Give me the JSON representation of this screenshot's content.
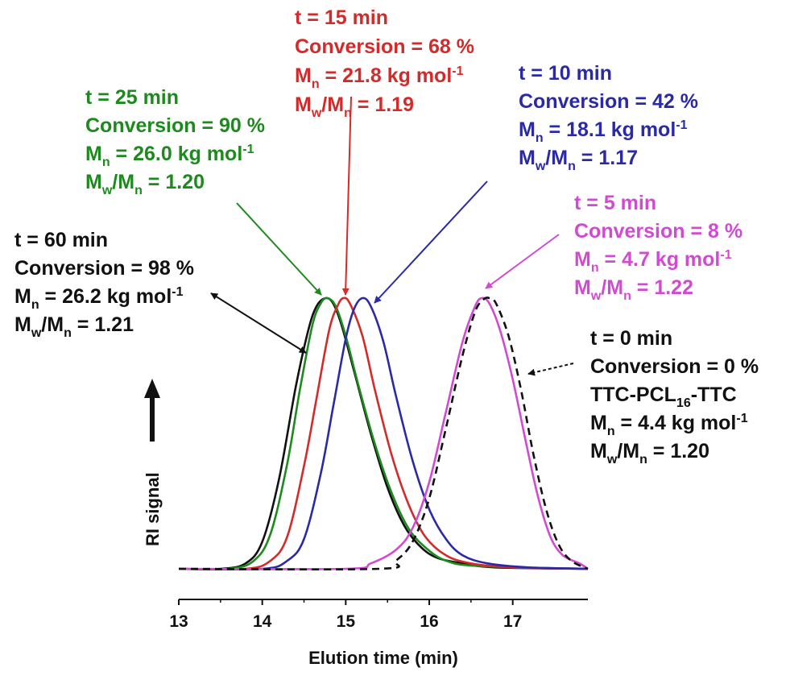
{
  "chart_data": {
    "type": "line",
    "xlabel": "Elution time (min)",
    "ylabel": "RI signal",
    "xlim": [
      13,
      17.9
    ],
    "ylim": [
      0,
      1
    ],
    "xticks": [
      13,
      14,
      15,
      16,
      17
    ],
    "grid": false,
    "series": [
      {
        "key": "t60",
        "color": "#111111",
        "dashed": false,
        "peak_x": 14.76,
        "annotation": [
          "t = 60 min",
          "Conversion = 98 %",
          "M_n = 26.2 kg mol^-1",
          "M_w/M_n = 1.21"
        ],
        "points": [
          [
            13.0,
            0.0
          ],
          [
            13.5,
            0.0
          ],
          [
            13.8,
            0.02
          ],
          [
            14.0,
            0.1
          ],
          [
            14.2,
            0.33
          ],
          [
            14.4,
            0.67
          ],
          [
            14.55,
            0.88
          ],
          [
            14.65,
            0.97
          ],
          [
            14.76,
            1.0
          ],
          [
            14.85,
            0.98
          ],
          [
            14.95,
            0.9
          ],
          [
            15.1,
            0.73
          ],
          [
            15.3,
            0.5
          ],
          [
            15.5,
            0.3
          ],
          [
            15.7,
            0.16
          ],
          [
            15.9,
            0.08
          ],
          [
            16.1,
            0.04
          ],
          [
            16.4,
            0.02
          ],
          [
            16.8,
            0.005
          ],
          [
            17.9,
            0.0
          ]
        ]
      },
      {
        "key": "t25",
        "color": "#1d8a1d",
        "dashed": false,
        "peak_x": 14.78,
        "annotation": [
          "t = 25 min",
          "Conversion = 90 %",
          "M_n = 26.0 kg mol^-1",
          "M_w/M_n = 1.20"
        ],
        "points": [
          [
            13.0,
            0.0
          ],
          [
            13.6,
            0.0
          ],
          [
            13.9,
            0.03
          ],
          [
            14.1,
            0.13
          ],
          [
            14.3,
            0.39
          ],
          [
            14.45,
            0.66
          ],
          [
            14.6,
            0.9
          ],
          [
            14.7,
            0.98
          ],
          [
            14.78,
            1.0
          ],
          [
            14.88,
            0.97
          ],
          [
            15.0,
            0.86
          ],
          [
            15.15,
            0.68
          ],
          [
            15.35,
            0.46
          ],
          [
            15.55,
            0.28
          ],
          [
            15.75,
            0.15
          ],
          [
            15.95,
            0.08
          ],
          [
            16.2,
            0.03
          ],
          [
            16.6,
            0.01
          ],
          [
            17.9,
            0.0
          ]
        ]
      },
      {
        "key": "t15",
        "color": "#d42a2a",
        "dashed": false,
        "peak_x": 14.97,
        "annotation": [
          "t = 15 min",
          "Conversion = 68 %",
          "M_n = 21.8 kg mol^-1",
          "M_w/M_n = 1.19"
        ],
        "points": [
          [
            13.0,
            0.0
          ],
          [
            13.8,
            0.0
          ],
          [
            14.1,
            0.03
          ],
          [
            14.3,
            0.12
          ],
          [
            14.5,
            0.38
          ],
          [
            14.65,
            0.63
          ],
          [
            14.8,
            0.88
          ],
          [
            14.9,
            0.97
          ],
          [
            14.97,
            1.0
          ],
          [
            15.05,
            0.98
          ],
          [
            15.2,
            0.86
          ],
          [
            15.35,
            0.66
          ],
          [
            15.55,
            0.42
          ],
          [
            15.75,
            0.24
          ],
          [
            15.95,
            0.12
          ],
          [
            16.2,
            0.05
          ],
          [
            16.5,
            0.02
          ],
          [
            17.0,
            0.005
          ],
          [
            17.9,
            0.0
          ]
        ]
      },
      {
        "key": "t10",
        "color": "#2a2aa8",
        "dashed": false,
        "peak_x": 15.2,
        "annotation": [
          "t = 10 min",
          "Conversion = 42 %",
          "M_n = 18.1 kg mol^-1",
          "M_w/M_n = 1.17"
        ],
        "points": [
          [
            13.0,
            0.0
          ],
          [
            14.0,
            0.0
          ],
          [
            14.3,
            0.03
          ],
          [
            14.5,
            0.11
          ],
          [
            14.7,
            0.35
          ],
          [
            14.85,
            0.6
          ],
          [
            15.0,
            0.85
          ],
          [
            15.1,
            0.96
          ],
          [
            15.2,
            1.0
          ],
          [
            15.3,
            0.97
          ],
          [
            15.45,
            0.84
          ],
          [
            15.6,
            0.64
          ],
          [
            15.8,
            0.4
          ],
          [
            16.0,
            0.22
          ],
          [
            16.2,
            0.11
          ],
          [
            16.4,
            0.05
          ],
          [
            16.7,
            0.02
          ],
          [
            17.2,
            0.005
          ],
          [
            17.9,
            0.0
          ]
        ]
      },
      {
        "key": "t5",
        "color": "#d24ad2",
        "dashed": false,
        "peak_x": 16.63,
        "annotation": [
          "t = 5 min",
          "Conversion = 8 %",
          "M_n = 4.7 kg mol^-1",
          "M_w/M_n = 1.22"
        ],
        "points": [
          [
            13.0,
            0.0
          ],
          [
            15.0,
            0.0
          ],
          [
            15.3,
            0.02
          ],
          [
            15.6,
            0.07
          ],
          [
            15.8,
            0.15
          ],
          [
            16.0,
            0.32
          ],
          [
            16.2,
            0.58
          ],
          [
            16.4,
            0.84
          ],
          [
            16.55,
            0.97
          ],
          [
            16.63,
            1.0
          ],
          [
            16.72,
            0.98
          ],
          [
            16.85,
            0.88
          ],
          [
            17.0,
            0.7
          ],
          [
            17.15,
            0.48
          ],
          [
            17.3,
            0.27
          ],
          [
            17.45,
            0.12
          ],
          [
            17.6,
            0.05
          ],
          [
            17.8,
            0.02
          ],
          [
            17.9,
            0.0
          ]
        ]
      },
      {
        "key": "t0",
        "color": "#111111",
        "dashed": true,
        "peak_x": 16.72,
        "annotation": [
          "t = 0 min",
          "Conversion = 0 %",
          "TTC-PCL_16-TTC",
          "M_n = 4.4 kg mol^-1",
          "M_w/M_n = 1.20"
        ],
        "points": [
          [
            13.0,
            0.0
          ],
          [
            15.4,
            0.0
          ],
          [
            15.6,
            0.03
          ],
          [
            15.8,
            0.1
          ],
          [
            16.0,
            0.26
          ],
          [
            16.2,
            0.52
          ],
          [
            16.4,
            0.79
          ],
          [
            16.55,
            0.95
          ],
          [
            16.65,
            0.995
          ],
          [
            16.72,
            1.0
          ],
          [
            16.8,
            0.98
          ],
          [
            16.95,
            0.86
          ],
          [
            17.1,
            0.66
          ],
          [
            17.25,
            0.42
          ],
          [
            17.4,
            0.22
          ],
          [
            17.55,
            0.09
          ],
          [
            17.7,
            0.03
          ],
          [
            17.9,
            0.0
          ]
        ]
      }
    ]
  }
}
